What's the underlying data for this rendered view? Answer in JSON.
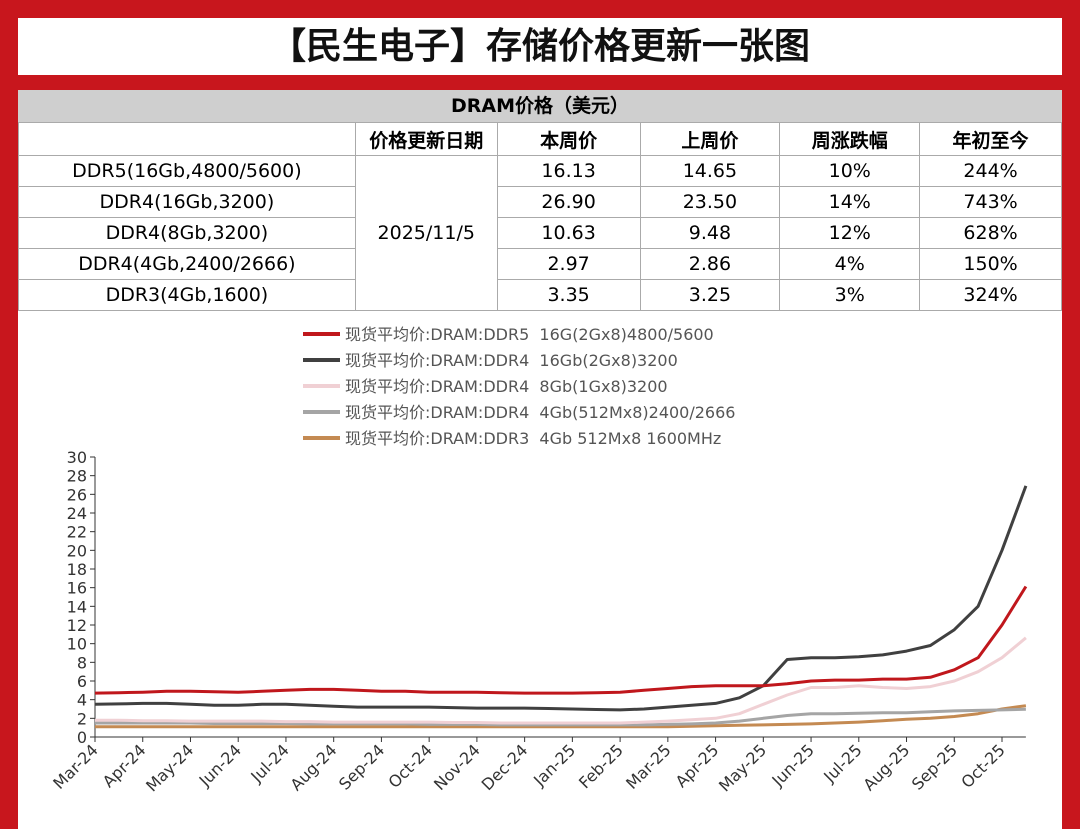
{
  "header": {
    "title": "【民生电子】存储价格更新一张图"
  },
  "table": {
    "caption": "DRAM价格（美元）",
    "columns": [
      "价格更新日期",
      "本周价",
      "上周价",
      "周涨跌幅",
      "年初至今"
    ],
    "date": "2025/11/5",
    "rows": [
      [
        "DDR5(16Gb,4800/5600)",
        "16.13",
        "14.65",
        "10%",
        "244%"
      ],
      [
        "DDR4(16Gb,3200)",
        "26.90",
        "23.50",
        "14%",
        "743%"
      ],
      [
        "DDR4(8Gb,3200)",
        "10.63",
        "9.48",
        "12%",
        "628%"
      ],
      [
        "DDR4(4Gb,2400/2666)",
        "2.97",
        "2.86",
        "4%",
        "150%"
      ],
      [
        "DDR3(4Gb,1600)",
        "3.35",
        "3.25",
        "3%",
        "324%"
      ]
    ]
  },
  "chart_data": {
    "type": "line",
    "categories": [
      "Mar-24",
      null,
      "Apr-24",
      null,
      "May-24",
      null,
      "Jun-24",
      null,
      "Jul-24",
      null,
      "Aug-24",
      null,
      "Sep-24",
      null,
      "Oct-24",
      null,
      "Nov-24",
      null,
      "Dec-24",
      null,
      "Jan-25",
      null,
      "Feb-25",
      null,
      "Mar-25",
      null,
      "Apr-25",
      null,
      "May-25",
      null,
      "Jun-25",
      null,
      "Jul-25",
      null,
      "Aug-25",
      null,
      "Sep-25",
      null,
      "Oct-25",
      null
    ],
    "series": [
      {
        "name": "现货平均价:DRAM:DDR5  16G(2Gx8)4800/5600",
        "color": "#c0171c",
        "values": [
          4.7,
          4.75,
          4.8,
          4.9,
          4.9,
          4.85,
          4.8,
          4.9,
          5.0,
          5.1,
          5.1,
          5.0,
          4.9,
          4.9,
          4.8,
          4.8,
          4.8,
          4.75,
          4.7,
          4.7,
          4.7,
          4.75,
          4.8,
          5.0,
          5.2,
          5.4,
          5.5,
          5.5,
          5.5,
          5.7,
          6.0,
          6.1,
          6.1,
          6.2,
          6.2,
          6.4,
          7.2,
          8.5,
          12,
          16.13
        ]
      },
      {
        "name": "现货平均价:DRAM:DDR4  16Gb(2Gx8)3200",
        "color": "#404040",
        "values": [
          3.5,
          3.55,
          3.6,
          3.6,
          3.5,
          3.4,
          3.4,
          3.5,
          3.5,
          3.4,
          3.3,
          3.2,
          3.2,
          3.2,
          3.2,
          3.15,
          3.1,
          3.1,
          3.1,
          3.05,
          3.0,
          2.95,
          2.9,
          3.0,
          3.2,
          3.4,
          3.6,
          4.2,
          5.5,
          8.3,
          8.5,
          8.5,
          8.6,
          8.8,
          9.2,
          9.8,
          11.5,
          14,
          20,
          26.9
        ]
      },
      {
        "name": "现货平均价:DRAM:DDR4  8Gb(1Gx8)3200",
        "color": "#f0d0d4",
        "values": [
          1.8,
          1.8,
          1.75,
          1.75,
          1.7,
          1.7,
          1.7,
          1.7,
          1.65,
          1.65,
          1.6,
          1.6,
          1.6,
          1.6,
          1.6,
          1.55,
          1.55,
          1.5,
          1.5,
          1.5,
          1.5,
          1.5,
          1.5,
          1.6,
          1.7,
          1.85,
          2.0,
          2.5,
          3.5,
          4.5,
          5.3,
          5.3,
          5.5,
          5.3,
          5.2,
          5.4,
          6.0,
          7.0,
          8.5,
          10.63
        ]
      },
      {
        "name": "现货平均价:DRAM:DDR4  4Gb(512Mx8)2400/2666",
        "color": "#a5a5a5",
        "values": [
          1.5,
          1.5,
          1.5,
          1.5,
          1.5,
          1.45,
          1.45,
          1.45,
          1.45,
          1.4,
          1.4,
          1.4,
          1.4,
          1.4,
          1.35,
          1.35,
          1.35,
          1.3,
          1.3,
          1.3,
          1.3,
          1.3,
          1.3,
          1.3,
          1.35,
          1.4,
          1.5,
          1.7,
          2.0,
          2.3,
          2.5,
          2.5,
          2.55,
          2.6,
          2.6,
          2.7,
          2.8,
          2.85,
          2.9,
          2.97
        ]
      },
      {
        "name": "现货平均价:DRAM:DDR3  4Gb 512Mx8 1600MHz",
        "color": "#c48a52",
        "values": [
          1.1,
          1.1,
          1.1,
          1.1,
          1.1,
          1.1,
          1.1,
          1.1,
          1.1,
          1.1,
          1.1,
          1.1,
          1.1,
          1.1,
          1.1,
          1.1,
          1.1,
          1.1,
          1.1,
          1.1,
          1.1,
          1.1,
          1.1,
          1.1,
          1.1,
          1.15,
          1.2,
          1.25,
          1.3,
          1.35,
          1.4,
          1.5,
          1.6,
          1.75,
          1.9,
          2.0,
          2.2,
          2.5,
          3.0,
          3.35
        ]
      }
    ],
    "ylim": [
      0,
      30
    ],
    "yticks": [
      0,
      2,
      4,
      6,
      8,
      10,
      12,
      14,
      16,
      18,
      20,
      22,
      24,
      26,
      28,
      30
    ],
    "grid": false
  }
}
